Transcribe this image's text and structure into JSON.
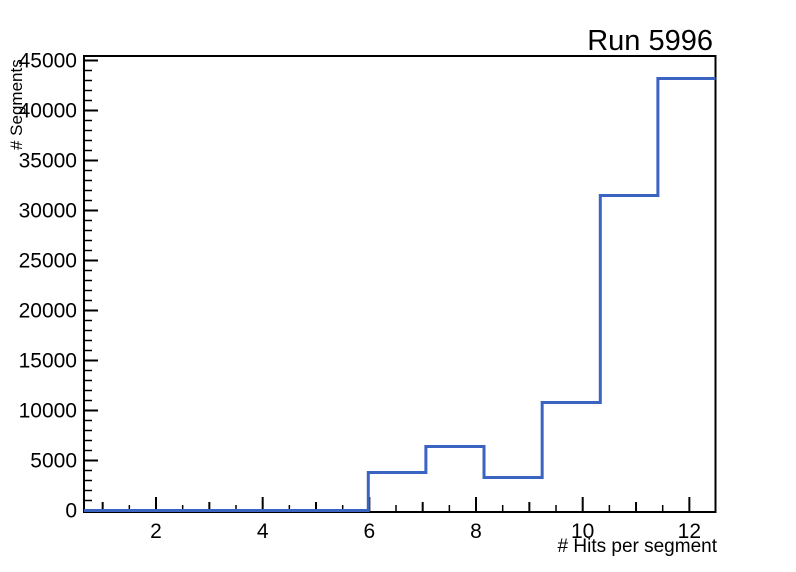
{
  "window": {
    "background": "#ffffff"
  },
  "chart_data": {
    "type": "line",
    "subtype": "step-histogram",
    "title": "Run 5996",
    "xlabel": "# Hits per segment",
    "ylabel": "# Segments",
    "xlim": [
      0.65,
      12.49
    ],
    "ylim": [
      0,
      45450
    ],
    "grid": false,
    "legend": "none",
    "line_color": "#3A63C2",
    "frame_color": "#000000",
    "bin_edges": [
      0.65,
      5.98,
      7.06,
      8.15,
      9.24,
      10.33,
      11.41,
      12.49
    ],
    "counts": [
      0,
      3800,
      6400,
      3300,
      10800,
      31500,
      43200
    ],
    "x_axis": {
      "title": "# Hits per segment",
      "major_ticks": [
        2,
        4,
        6,
        8,
        10,
        12
      ],
      "major_labels": [
        "2",
        "4",
        "6",
        "8",
        "10",
        "12"
      ],
      "medium_ticks": [
        1,
        3,
        5,
        7,
        9,
        11
      ],
      "minor_ticks": [
        1.5,
        2.5,
        3.5,
        4.5,
        5.5,
        6.5,
        7.5,
        8.5,
        9.5,
        10.5,
        11.5
      ]
    },
    "y_axis": {
      "title": "# Segments",
      "major_ticks": [
        0,
        5000,
        10000,
        15000,
        20000,
        25000,
        30000,
        35000,
        40000,
        45000
      ],
      "major_labels": [
        "0",
        "5000",
        "10000",
        "15000",
        "20000",
        "25000",
        "30000",
        "35000",
        "40000",
        "45000"
      ],
      "minor_step": 1000
    }
  }
}
